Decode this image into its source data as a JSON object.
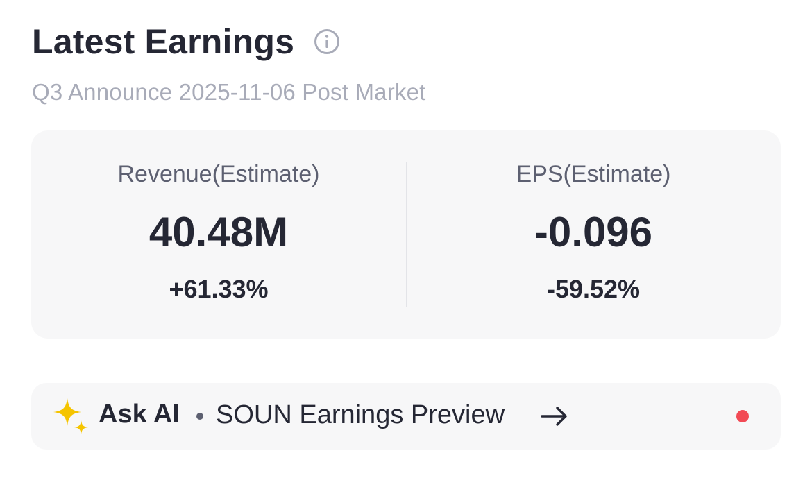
{
  "header": {
    "title": "Latest Earnings",
    "info_icon": "info-circle-icon",
    "subtitle": "Q3 Announce 2025-11-06 Post Market"
  },
  "metrics": [
    {
      "label": "Revenue(Estimate)",
      "value": "40.48M",
      "change": "+61.33%"
    },
    {
      "label": "EPS(Estimate)",
      "value": "-0.096",
      "change": "-59.52%"
    }
  ],
  "ask_ai": {
    "icon": "sparkle-icon",
    "label": "Ask AI",
    "text": "SOUN Earnings Preview",
    "arrow_icon": "arrow-right-icon",
    "notification_color": "#f24a55"
  },
  "colors": {
    "text_primary": "#252734",
    "text_secondary": "#5d6071",
    "text_muted": "#a8abb8",
    "panel_bg": "#f7f7f8",
    "sparkle": "#f5c400"
  }
}
